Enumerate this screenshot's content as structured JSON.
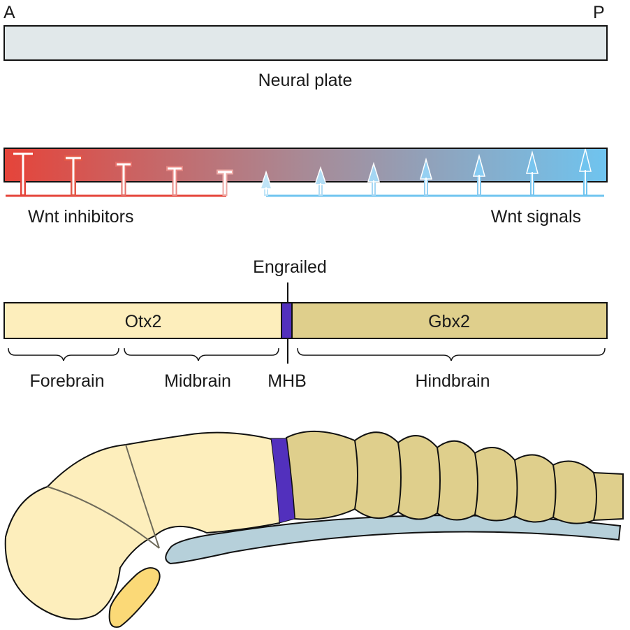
{
  "axis": {
    "anterior": "A",
    "posterior": "P"
  },
  "neural_plate": {
    "label": "Neural plate",
    "fill": "#e1e8ea"
  },
  "wnt": {
    "inhibitors_label": "Wnt inhibitors",
    "signals_label": "Wnt signals",
    "inhibitor_color": "#e5443a",
    "signal_color": "#6fc4ef",
    "inhibitor_count": 5,
    "signal_count": 7
  },
  "genes": {
    "engrailed": "Engrailed",
    "otx2": "Otx2",
    "gbx2": "Gbx2",
    "otx2_color": "#fdeebc",
    "gbx2_color": "#dfcf8c",
    "engrailed_color": "#5230bd"
  },
  "regions": {
    "forebrain": "Forebrain",
    "midbrain": "Midbrain",
    "mhb": "MHB",
    "hindbrain": "Hindbrain"
  },
  "embryo": {
    "notochord_color": "#b6d0da",
    "eye_color": "#fbd977",
    "hindbrain_segment_count": 7
  }
}
